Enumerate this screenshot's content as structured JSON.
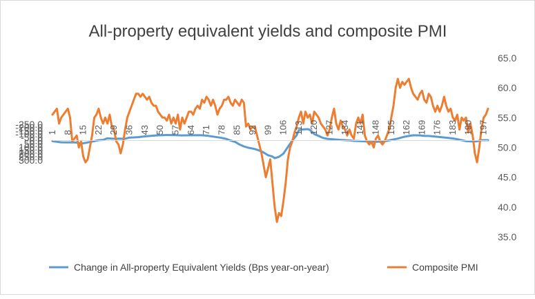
{
  "chart_data": {
    "type": "line",
    "title": "All-property equivalent yields and composite PMI",
    "grid": false,
    "legend_placement": "bottom",
    "x_tick_labels": [
      "1",
      "8",
      "15",
      "22",
      "29",
      "36",
      "43",
      "50",
      "57",
      "64",
      "71",
      "78",
      "85",
      "92",
      "99",
      "106",
      "113",
      "120",
      "127",
      "134",
      "141",
      "148",
      "155",
      "162",
      "169",
      "176",
      "183",
      "190",
      "197"
    ],
    "x_range": [
      1,
      199
    ],
    "y_left": {
      "reversed": true,
      "range": [
        -250,
        300
      ],
      "ticks": [
        -250,
        -200,
        -150,
        -100,
        -50,
        0,
        50,
        100,
        150,
        200,
        250,
        300
      ],
      "tick_labels": [
        "-250.0",
        "-200.0",
        "-150.0",
        "-100.0",
        "-50.0",
        "0.0",
        "50.0",
        "100.0",
        "150.0",
        "200.0",
        "250.0",
        "300.0"
      ]
    },
    "y_right": {
      "range": [
        35,
        65
      ],
      "ticks": [
        35,
        40,
        45,
        50,
        55,
        60,
        65
      ],
      "tick_labels": [
        "35.0",
        "40.0",
        "45.0",
        "50.0",
        "55.0",
        "60.0",
        "65.0"
      ]
    },
    "series": [
      {
        "name": "Change in All-property Equivalent Yields (Bps year-on-year)",
        "axis": "left",
        "color": "#5b9bd5",
        "points": [
          [
            1,
            10
          ],
          [
            2,
            15
          ],
          [
            5,
            28
          ],
          [
            8,
            30
          ],
          [
            10,
            28
          ],
          [
            12,
            32
          ],
          [
            14,
            45
          ],
          [
            15,
            42
          ],
          [
            17,
            30
          ],
          [
            20,
            10
          ],
          [
            22,
            -5
          ],
          [
            24,
            -10
          ],
          [
            26,
            -35
          ],
          [
            28,
            -30
          ],
          [
            30,
            -28
          ],
          [
            32,
            -30
          ],
          [
            34,
            -28
          ],
          [
            36,
            -45
          ],
          [
            38,
            -48
          ],
          [
            40,
            -52
          ],
          [
            43,
            -63
          ],
          [
            47,
            -75
          ],
          [
            50,
            -80
          ],
          [
            53,
            -85
          ],
          [
            57,
            -82
          ],
          [
            60,
            -78
          ],
          [
            64,
            -80
          ],
          [
            68,
            -82
          ],
          [
            71,
            -75
          ],
          [
            74,
            -60
          ],
          [
            77,
            -45
          ],
          [
            80,
            -25
          ],
          [
            82,
            0
          ],
          [
            84,
            20
          ],
          [
            86,
            60
          ],
          [
            88,
            90
          ],
          [
            90,
            110
          ],
          [
            93,
            130
          ],
          [
            96,
            165
          ],
          [
            99,
            225
          ],
          [
            101,
            245
          ],
          [
            102,
            270
          ],
          [
            103,
            260
          ],
          [
            104,
            250
          ],
          [
            106,
            200
          ],
          [
            108,
            100
          ],
          [
            110,
            0
          ],
          [
            112,
            -80
          ],
          [
            113,
            -160
          ],
          [
            115,
            -170
          ],
          [
            117,
            -175
          ],
          [
            118,
            -165
          ],
          [
            120,
            -100
          ],
          [
            122,
            -70
          ],
          [
            124,
            -40
          ],
          [
            126,
            -25
          ],
          [
            128,
            -20
          ],
          [
            130,
            -15
          ],
          [
            132,
            -10
          ],
          [
            134,
            -5
          ],
          [
            136,
            -2
          ],
          [
            138,
            5
          ],
          [
            141,
            10
          ],
          [
            144,
            15
          ],
          [
            146,
            18
          ],
          [
            148,
            20
          ],
          [
            151,
            15
          ],
          [
            153,
            5
          ],
          [
            155,
            -10
          ],
          [
            158,
            -30
          ],
          [
            160,
            -50
          ],
          [
            162,
            -65
          ],
          [
            165,
            -80
          ],
          [
            168,
            -78
          ],
          [
            170,
            -72
          ],
          [
            172,
            -70
          ],
          [
            175,
            -60
          ],
          [
            178,
            -50
          ],
          [
            181,
            -40
          ],
          [
            183,
            -32
          ],
          [
            185,
            -20
          ],
          [
            187,
            -5
          ],
          [
            189,
            10
          ],
          [
            192,
            15
          ],
          [
            194,
            12
          ],
          [
            196,
            -5
          ],
          [
            199,
            -5
          ]
        ]
      },
      {
        "name": "Composite PMI",
        "axis": "right",
        "color": "#ed7d31",
        "points": [
          [
            1,
            55.5
          ],
          [
            2,
            56
          ],
          [
            3,
            56.5
          ],
          [
            4,
            54
          ],
          [
            5,
            55
          ],
          [
            6,
            55.5
          ],
          [
            7,
            56
          ],
          [
            8,
            56.5
          ],
          [
            9,
            55
          ],
          [
            10,
            51
          ],
          [
            11,
            51.5
          ],
          [
            12,
            52
          ],
          [
            13,
            50
          ],
          [
            14,
            51
          ],
          [
            15,
            48.5
          ],
          [
            16,
            47.5
          ],
          [
            17,
            48
          ],
          [
            18,
            50
          ],
          [
            19,
            52
          ],
          [
            20,
            55
          ],
          [
            21,
            55.5
          ],
          [
            22,
            56.5
          ],
          [
            23,
            55
          ],
          [
            24,
            54
          ],
          [
            25,
            55
          ],
          [
            26,
            54
          ],
          [
            27,
            55.5
          ],
          [
            28,
            53.5
          ],
          [
            29,
            53
          ],
          [
            30,
            51
          ],
          [
            31,
            50.5
          ],
          [
            32,
            49
          ],
          [
            33,
            50.5
          ],
          [
            34,
            53
          ],
          [
            35,
            55
          ],
          [
            36,
            56
          ],
          [
            37,
            57
          ],
          [
            38,
            58
          ],
          [
            39,
            59
          ],
          [
            40,
            59
          ],
          [
            41,
            58.5
          ],
          [
            42,
            59
          ],
          [
            43,
            58.5
          ],
          [
            44,
            58
          ],
          [
            45,
            58.5
          ],
          [
            46,
            57.5
          ],
          [
            47,
            57
          ],
          [
            48,
            57
          ],
          [
            49,
            56
          ],
          [
            50,
            55.5
          ],
          [
            51,
            55
          ],
          [
            52,
            55
          ],
          [
            53,
            54.5
          ],
          [
            54,
            55.5
          ],
          [
            55,
            54
          ],
          [
            56,
            55
          ],
          [
            57,
            54
          ],
          [
            58,
            55.5
          ],
          [
            59,
            53
          ],
          [
            60,
            55
          ],
          [
            61,
            54
          ],
          [
            62,
            55
          ],
          [
            63,
            56
          ],
          [
            64,
            56
          ],
          [
            65,
            55.5
          ],
          [
            66,
            56.5
          ],
          [
            67,
            57
          ],
          [
            68,
            56.5
          ],
          [
            69,
            58
          ],
          [
            70,
            57.5
          ],
          [
            71,
            58.5
          ],
          [
            72,
            58
          ],
          [
            73,
            57
          ],
          [
            74,
            58
          ],
          [
            75,
            57
          ],
          [
            76,
            55.5
          ],
          [
            77,
            56.5
          ],
          [
            78,
            57
          ],
          [
            79,
            58
          ],
          [
            80,
            58
          ],
          [
            81,
            58.5
          ],
          [
            82,
            57.5
          ],
          [
            83,
            57
          ],
          [
            84,
            58
          ],
          [
            85,
            57.5
          ],
          [
            86,
            57
          ],
          [
            87,
            58
          ],
          [
            88,
            57.5
          ],
          [
            89,
            53.5
          ],
          [
            90,
            54
          ],
          [
            91,
            53
          ],
          [
            92,
            53.5
          ],
          [
            93,
            53.5
          ],
          [
            94,
            52
          ],
          [
            95,
            50.5
          ],
          [
            96,
            49
          ],
          [
            97,
            47
          ],
          [
            98,
            45
          ],
          [
            99,
            46.5
          ],
          [
            100,
            48
          ],
          [
            101,
            44
          ],
          [
            102,
            40
          ],
          [
            103,
            37.5
          ],
          [
            104,
            39
          ],
          [
            105,
            38.5
          ],
          [
            106,
            41
          ],
          [
            107,
            44
          ],
          [
            108,
            48
          ],
          [
            109,
            50
          ],
          [
            110,
            51
          ],
          [
            111,
            52.5
          ],
          [
            112,
            53.5
          ],
          [
            113,
            55
          ],
          [
            114,
            56
          ],
          [
            115,
            54
          ],
          [
            116,
            56
          ],
          [
            117,
            55
          ],
          [
            118,
            55.5
          ],
          [
            119,
            54
          ],
          [
            120,
            56
          ],
          [
            121,
            55.5
          ],
          [
            122,
            55
          ],
          [
            123,
            54
          ],
          [
            124,
            53.5
          ],
          [
            125,
            53
          ],
          [
            126,
            52
          ],
          [
            127,
            53
          ],
          [
            128,
            55
          ],
          [
            129,
            56.5
          ],
          [
            130,
            54
          ],
          [
            131,
            53
          ],
          [
            132,
            54.5
          ],
          [
            133,
            53.5
          ],
          [
            134,
            53
          ],
          [
            135,
            52
          ],
          [
            136,
            53
          ],
          [
            137,
            52
          ],
          [
            138,
            51.5
          ],
          [
            139,
            54
          ],
          [
            140,
            55
          ],
          [
            141,
            54
          ],
          [
            142,
            55.5
          ],
          [
            143,
            52
          ],
          [
            144,
            51
          ],
          [
            145,
            50.5
          ],
          [
            146,
            51
          ],
          [
            147,
            50
          ],
          [
            148,
            51.5
          ],
          [
            149,
            52
          ],
          [
            150,
            51
          ],
          [
            151,
            50.5
          ],
          [
            152,
            51
          ],
          [
            153,
            52
          ],
          [
            154,
            53
          ],
          [
            155,
            55
          ],
          [
            156,
            57
          ],
          [
            157,
            60
          ],
          [
            158,
            61.5
          ],
          [
            159,
            60
          ],
          [
            160,
            61
          ],
          [
            161,
            60.5
          ],
          [
            162,
            61
          ],
          [
            163,
            61.5
          ],
          [
            164,
            60
          ],
          [
            165,
            59
          ],
          [
            166,
            58.5
          ],
          [
            167,
            58
          ],
          [
            168,
            59
          ],
          [
            169,
            59.5
          ],
          [
            170,
            58
          ],
          [
            171,
            57.5
          ],
          [
            172,
            59
          ],
          [
            173,
            58.5
          ],
          [
            174,
            57
          ],
          [
            175,
            56
          ],
          [
            176,
            57
          ],
          [
            177,
            56
          ],
          [
            178,
            57
          ],
          [
            179,
            58.5
          ],
          [
            180,
            57
          ],
          [
            181,
            56
          ],
          [
            182,
            56.5
          ],
          [
            183,
            55
          ],
          [
            184,
            54.5
          ],
          [
            185,
            55.5
          ],
          [
            186,
            53
          ],
          [
            187,
            55
          ],
          [
            188,
            54.5
          ],
          [
            189,
            55
          ],
          [
            190,
            52.5
          ],
          [
            191,
            54
          ],
          [
            192,
            52
          ],
          [
            193,
            49
          ],
          [
            194,
            47.5
          ],
          [
            195,
            50
          ],
          [
            196,
            53
          ],
          [
            197,
            55
          ],
          [
            198,
            55.5
          ],
          [
            199,
            56.5
          ]
        ]
      }
    ]
  }
}
